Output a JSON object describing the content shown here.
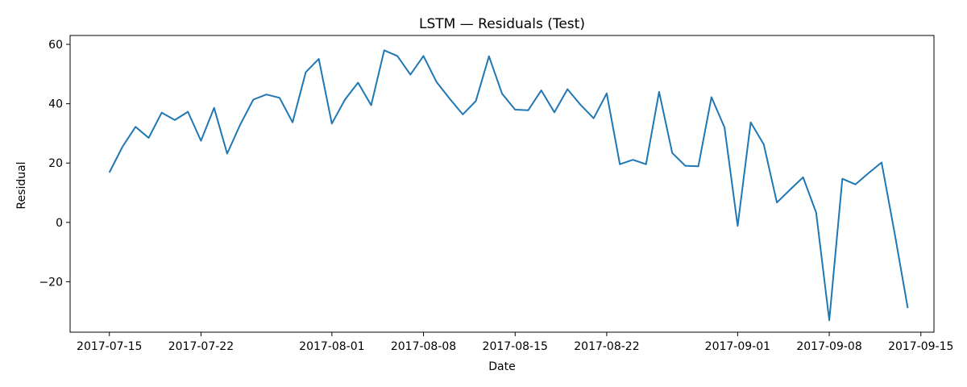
{
  "chart_data": {
    "type": "line",
    "title": "LSTM — Residuals (Test)",
    "xlabel": "Date",
    "ylabel": "Residual",
    "grid": false,
    "legend": "none",
    "xlim": [
      "2017-07-12",
      "2017-09-16"
    ],
    "ylim": [
      -37,
      63
    ],
    "x_ticks": [
      "2017-07-15",
      "2017-07-22",
      "2017-08-01",
      "2017-08-08",
      "2017-08-15",
      "2017-08-22",
      "2017-09-01",
      "2017-09-08",
      "2017-09-15"
    ],
    "y_ticks": [
      -20,
      0,
      20,
      40,
      60
    ],
    "y_tick_labels": [
      "−20",
      "0",
      "20",
      "40",
      "60"
    ],
    "series": [
      {
        "color": "#1f77b4",
        "x": [
          "2017-07-15",
          "2017-07-16",
          "2017-07-17",
          "2017-07-18",
          "2017-07-19",
          "2017-07-20",
          "2017-07-21",
          "2017-07-22",
          "2017-07-23",
          "2017-07-24",
          "2017-07-25",
          "2017-07-26",
          "2017-07-27",
          "2017-07-28",
          "2017-07-29",
          "2017-07-30",
          "2017-07-31",
          "2017-08-01",
          "2017-08-02",
          "2017-08-03",
          "2017-08-04",
          "2017-08-05",
          "2017-08-06",
          "2017-08-07",
          "2017-08-08",
          "2017-08-09",
          "2017-08-10",
          "2017-08-11",
          "2017-08-12",
          "2017-08-13",
          "2017-08-14",
          "2017-08-15",
          "2017-08-16",
          "2017-08-17",
          "2017-08-18",
          "2017-08-19",
          "2017-08-20",
          "2017-08-21",
          "2017-08-22",
          "2017-08-23",
          "2017-08-24",
          "2017-08-25",
          "2017-08-26",
          "2017-08-27",
          "2017-08-28",
          "2017-08-29",
          "2017-08-30",
          "2017-08-31",
          "2017-09-01",
          "2017-09-02",
          "2017-09-03",
          "2017-09-04",
          "2017-09-05",
          "2017-09-06",
          "2017-09-07",
          "2017-09-08",
          "2017-09-09",
          "2017-09-10",
          "2017-09-11",
          "2017-09-12",
          "2017-09-13",
          "2017-09-14"
        ],
        "y": [
          16.8,
          25.5,
          32.2,
          28.5,
          37.0,
          34.5,
          37.3,
          27.5,
          38.6,
          23.2,
          33.0,
          41.4,
          43.1,
          42.0,
          33.7,
          50.6,
          55.1,
          33.3,
          41.4,
          47.1,
          39.5,
          58.0,
          56.1,
          49.8,
          56.1,
          47.3,
          41.7,
          36.4,
          40.9,
          56.0,
          43.4,
          38.0,
          37.8,
          44.5,
          37.1,
          44.9,
          39.6,
          35.1,
          43.5,
          19.6,
          21.1,
          19.6,
          44.0,
          23.4,
          19.1,
          18.9,
          42.2,
          32.0,
          -1.2,
          33.7,
          26.3,
          6.7,
          11.0,
          15.2,
          3.3,
          -33.0,
          14.7,
          12.8,
          16.6,
          20.2,
          -3.8,
          -28.9
        ]
      }
    ]
  }
}
